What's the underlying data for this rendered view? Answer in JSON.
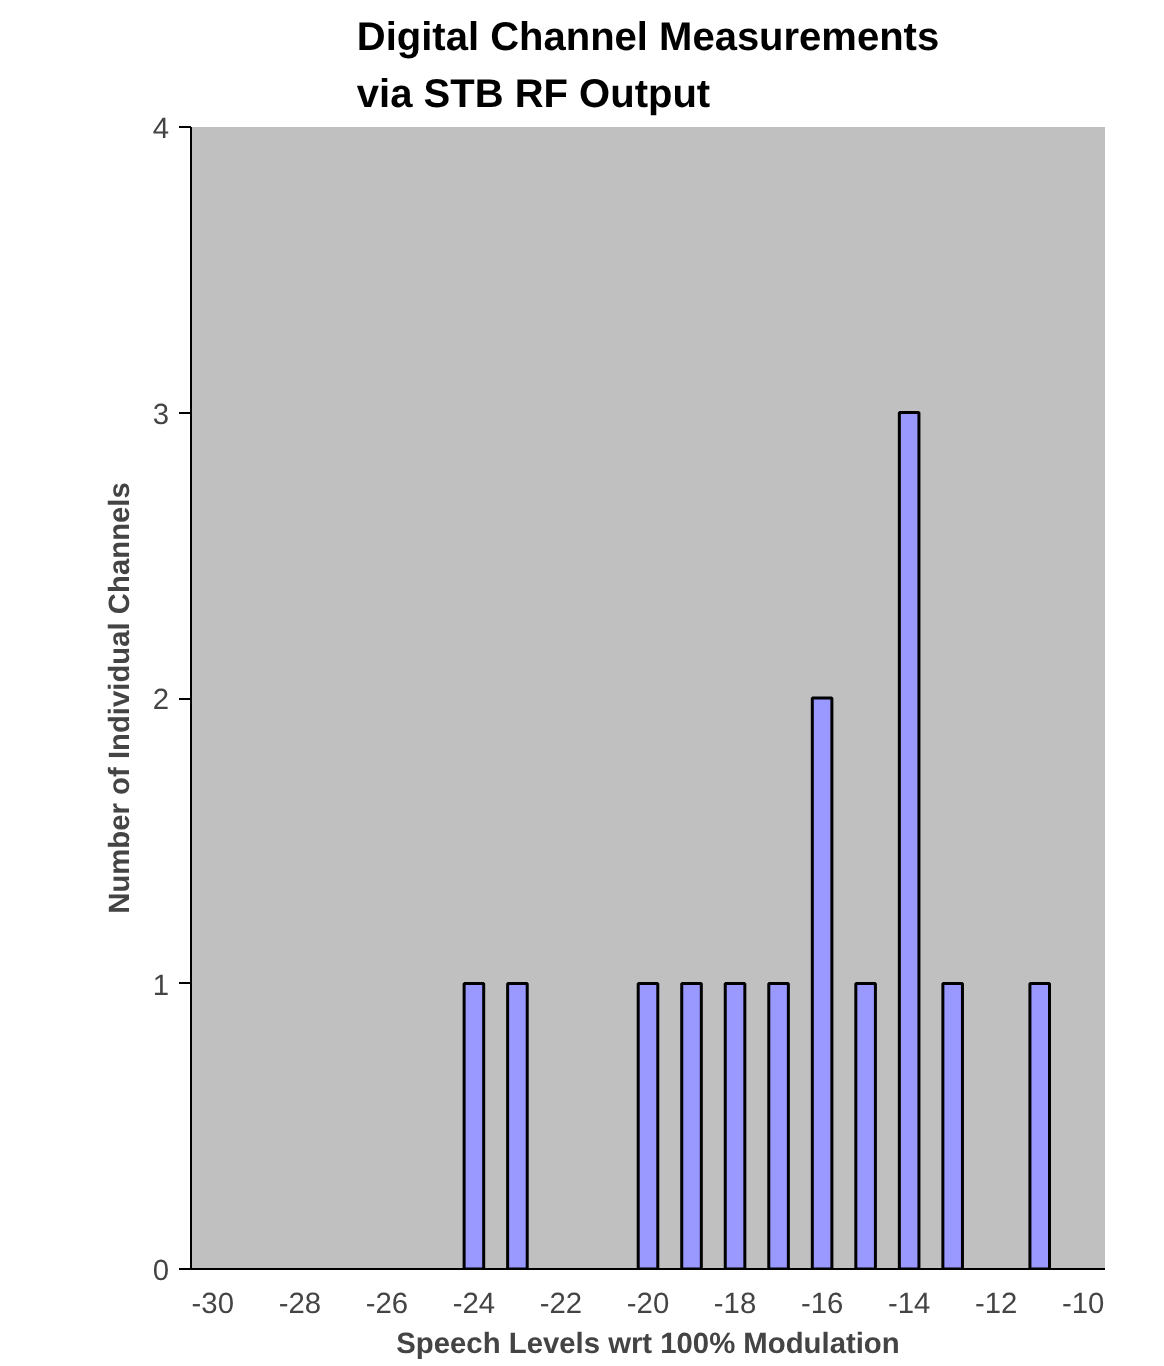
{
  "chart_data": {
    "type": "bar",
    "title": "Digital Channel Measurements\nvia STB RF Output",
    "xlabel": "Speech Levels wrt 100% Modulation",
    "ylabel": "Number of Individual Channels",
    "categories": [
      "-30",
      null,
      "-28",
      null,
      "-26",
      null,
      "-24",
      null,
      "-22",
      null,
      "-20",
      null,
      "-18",
      null,
      "-16",
      null,
      "-14",
      null,
      "-12",
      null,
      "-10"
    ],
    "values": [
      0,
      0,
      0,
      0,
      0,
      0,
      1,
      1,
      0,
      0,
      1,
      1,
      1,
      1,
      2,
      1,
      3,
      1,
      0,
      1,
      0
    ],
    "color": "#9999ff",
    "ylim": [
      0,
      4
    ],
    "yticks": [
      0,
      1,
      2,
      3,
      4
    ],
    "grid": false
  }
}
